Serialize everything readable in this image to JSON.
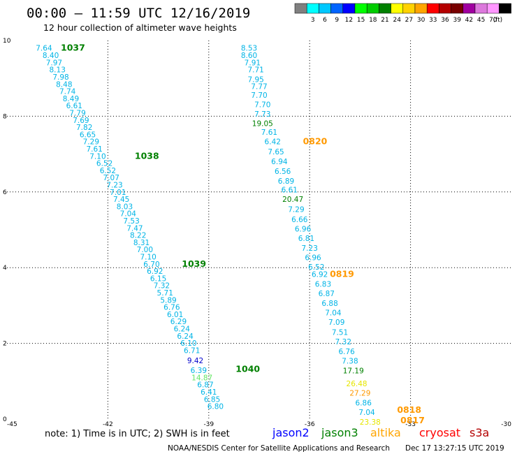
{
  "header": {
    "title": "00:00 – 11:59 UTC 12/16/2019",
    "subtitle": "12 hour collection of altimeter wave heights"
  },
  "legend": {
    "unit": "(ft)",
    "items": [
      {
        "label": "",
        "color": "#808080"
      },
      {
        "label": "3",
        "color": "#00ffff"
      },
      {
        "label": "6",
        "color": "#00c8ff"
      },
      {
        "label": "9",
        "color": "#0064ff"
      },
      {
        "label": "12",
        "color": "#0000ff"
      },
      {
        "label": "15",
        "color": "#00ff00"
      },
      {
        "label": "18",
        "color": "#00cc00"
      },
      {
        "label": "21",
        "color": "#008000"
      },
      {
        "label": "24",
        "color": "#ffff00"
      },
      {
        "label": "27",
        "color": "#ffd200"
      },
      {
        "label": "30",
        "color": "#ffa500"
      },
      {
        "label": "33",
        "color": "#ff0000"
      },
      {
        "label": "36",
        "color": "#b40000"
      },
      {
        "label": "39",
        "color": "#780000"
      },
      {
        "label": "42",
        "color": "#a000a0"
      },
      {
        "label": "45",
        "color": "#dc78dc"
      },
      {
        "label": "70",
        "color": "#ff96ff"
      },
      {
        "label": "",
        "color": "#000000"
      }
    ]
  },
  "footer": {
    "note": "note: 1) Time is in UTC; 2) SWH is in feet",
    "satellites": [
      {
        "name": "jason2",
        "color": "#0000ff"
      },
      {
        "name": "jason3",
        "color": "#008000"
      },
      {
        "name": "altika",
        "color": "#ffa500"
      },
      {
        "name": "cryosat",
        "color": "#ff0000"
      },
      {
        "name": "s3a",
        "color": "#b40000"
      }
    ],
    "credit": "NOAA/NESDIS Center for Satellite Applications and Research",
    "timestamp": "Dec 17 13:27:15 UTC 2019"
  },
  "chart_data": {
    "type": "scatter",
    "xlim": [
      -45,
      -30
    ],
    "ylim": [
      0,
      10
    ],
    "x_ticks": [
      "-45",
      "-42",
      "-39",
      "-36",
      "-33",
      "-30"
    ],
    "y_ticks": [
      "0",
      "2",
      "4",
      "6",
      "8",
      "10"
    ],
    "grid": true,
    "colors": {
      "cyan": "#00b4e6",
      "green": "#008000",
      "lightgreen": "#64e664",
      "blue": "#0000cc",
      "orange": "#ff9900",
      "yellow": "#e6e600"
    },
    "series": [
      {
        "name": "track-west",
        "points": [
          {
            "x": -43.9,
            "y": 9.81,
            "v": "7.64",
            "c": "cyan"
          },
          {
            "x": -43.7,
            "y": 9.61,
            "v": "8.40",
            "c": "cyan"
          },
          {
            "x": -43.6,
            "y": 9.42,
            "v": "7.97",
            "c": "cyan"
          },
          {
            "x": -43.5,
            "y": 9.23,
            "v": "8.13",
            "c": "cyan"
          },
          {
            "x": -43.4,
            "y": 9.04,
            "v": "7.98",
            "c": "cyan"
          },
          {
            "x": -43.3,
            "y": 8.85,
            "v": "8.48",
            "c": "cyan"
          },
          {
            "x": -43.2,
            "y": 8.66,
            "v": "7.74",
            "c": "cyan"
          },
          {
            "x": -43.1,
            "y": 8.47,
            "v": "8.49",
            "c": "cyan"
          },
          {
            "x": -43.0,
            "y": 8.28,
            "v": "6.61",
            "c": "cyan"
          },
          {
            "x": -42.9,
            "y": 8.09,
            "v": "7.79",
            "c": "cyan"
          },
          {
            "x": -42.8,
            "y": 7.9,
            "v": "7.69",
            "c": "cyan"
          },
          {
            "x": -42.7,
            "y": 7.71,
            "v": "7.82",
            "c": "cyan"
          },
          {
            "x": -42.6,
            "y": 7.52,
            "v": "6.65",
            "c": "cyan"
          },
          {
            "x": -42.5,
            "y": 7.33,
            "v": "7.29",
            "c": "cyan"
          },
          {
            "x": -42.4,
            "y": 7.14,
            "v": "7.61",
            "c": "cyan"
          },
          {
            "x": -42.3,
            "y": 6.95,
            "v": "7.10",
            "c": "cyan"
          },
          {
            "x": -42.1,
            "y": 6.76,
            "v": "6.52",
            "c": "cyan"
          },
          {
            "x": -42.0,
            "y": 6.57,
            "v": "6.52",
            "c": "cyan"
          },
          {
            "x": -41.9,
            "y": 6.38,
            "v": "7.07",
            "c": "cyan"
          },
          {
            "x": -41.8,
            "y": 6.19,
            "v": "7.23",
            "c": "cyan"
          },
          {
            "x": -41.7,
            "y": 6.0,
            "v": "7.01",
            "c": "cyan"
          },
          {
            "x": -41.6,
            "y": 5.81,
            "v": "7.45",
            "c": "cyan"
          },
          {
            "x": -41.5,
            "y": 5.62,
            "v": "8.03",
            "c": "cyan"
          },
          {
            "x": -41.4,
            "y": 5.43,
            "v": "7.04",
            "c": "cyan"
          },
          {
            "x": -41.3,
            "y": 5.24,
            "v": "7.53",
            "c": "cyan"
          },
          {
            "x": -41.2,
            "y": 5.05,
            "v": "7.47",
            "c": "cyan"
          },
          {
            "x": -41.1,
            "y": 4.86,
            "v": "8.22",
            "c": "cyan"
          },
          {
            "x": -41.0,
            "y": 4.67,
            "v": "8.31",
            "c": "cyan"
          },
          {
            "x": -40.9,
            "y": 4.48,
            "v": "7.00",
            "c": "cyan"
          },
          {
            "x": -40.8,
            "y": 4.29,
            "v": "7.10",
            "c": "cyan"
          },
          {
            "x": -40.7,
            "y": 4.1,
            "v": "6.70",
            "c": "cyan"
          },
          {
            "x": -40.6,
            "y": 3.91,
            "v": "6.92",
            "c": "cyan"
          },
          {
            "x": -40.5,
            "y": 3.72,
            "v": "6.15",
            "c": "cyan"
          },
          {
            "x": -40.4,
            "y": 3.53,
            "v": "7.32",
            "c": "cyan"
          },
          {
            "x": -40.3,
            "y": 3.34,
            "v": "5.71",
            "c": "cyan"
          },
          {
            "x": -40.2,
            "y": 3.15,
            "v": "5.89",
            "c": "cyan"
          },
          {
            "x": -40.1,
            "y": 2.96,
            "v": "6.76",
            "c": "cyan"
          },
          {
            "x": -40.0,
            "y": 2.77,
            "v": "6.01",
            "c": "cyan"
          },
          {
            "x": -39.9,
            "y": 2.58,
            "v": "6.29",
            "c": "cyan"
          },
          {
            "x": -39.8,
            "y": 2.39,
            "v": "6.24",
            "c": "cyan"
          },
          {
            "x": -39.7,
            "y": 2.2,
            "v": "6.24",
            "c": "cyan"
          },
          {
            "x": -39.6,
            "y": 2.01,
            "v": "6.10",
            "c": "cyan"
          },
          {
            "x": -39.5,
            "y": 1.82,
            "v": "6.71",
            "c": "cyan"
          },
          {
            "x": -39.4,
            "y": 1.55,
            "v": "9.42",
            "c": "blue"
          },
          {
            "x": -39.3,
            "y": 1.29,
            "v": "6.39",
            "c": "cyan"
          },
          {
            "x": -39.2,
            "y": 1.1,
            "v": "14.87",
            "c": "lightgreen"
          },
          {
            "x": -39.1,
            "y": 0.91,
            "v": "6.87",
            "c": "cyan"
          },
          {
            "x": -39.0,
            "y": 0.72,
            "v": "6.41",
            "c": "cyan"
          },
          {
            "x": -38.9,
            "y": 0.53,
            "v": "6.85",
            "c": "cyan"
          },
          {
            "x": -38.8,
            "y": 0.34,
            "v": "6.80",
            "c": "cyan"
          }
        ]
      },
      {
        "name": "track-east",
        "points": [
          {
            "x": -37.8,
            "y": 9.81,
            "v": "8.53",
            "c": "cyan"
          },
          {
            "x": -37.8,
            "y": 9.61,
            "v": "8.60",
            "c": "cyan"
          },
          {
            "x": -37.7,
            "y": 9.42,
            "v": "7.91",
            "c": "cyan"
          },
          {
            "x": -37.6,
            "y": 9.23,
            "v": "7.71",
            "c": "cyan"
          },
          {
            "x": -37.6,
            "y": 8.98,
            "v": "7.95",
            "c": "cyan"
          },
          {
            "x": -37.5,
            "y": 8.79,
            "v": "7.77",
            "c": "cyan"
          },
          {
            "x": -37.5,
            "y": 8.56,
            "v": "7.70",
            "c": "cyan"
          },
          {
            "x": -37.4,
            "y": 8.31,
            "v": "7.70",
            "c": "cyan"
          },
          {
            "x": -37.4,
            "y": 8.06,
            "v": "7.73",
            "c": "cyan"
          },
          {
            "x": -37.4,
            "y": 7.81,
            "v": "19.05",
            "c": "green"
          },
          {
            "x": -37.2,
            "y": 7.58,
            "v": "7.61",
            "c": "cyan"
          },
          {
            "x": -37.1,
            "y": 7.33,
            "v": "6.42",
            "c": "cyan"
          },
          {
            "x": -37.0,
            "y": 7.07,
            "v": "7.65",
            "c": "cyan"
          },
          {
            "x": -36.9,
            "y": 6.81,
            "v": "6.94",
            "c": "cyan"
          },
          {
            "x": -36.8,
            "y": 6.55,
            "v": "6.56",
            "c": "cyan"
          },
          {
            "x": -36.7,
            "y": 6.29,
            "v": "6.89",
            "c": "cyan"
          },
          {
            "x": -36.6,
            "y": 6.06,
            "v": "6.61",
            "c": "cyan"
          },
          {
            "x": -36.5,
            "y": 5.81,
            "v": "20.47",
            "c": "green"
          },
          {
            "x": -36.4,
            "y": 5.54,
            "v": "7.29",
            "c": "cyan"
          },
          {
            "x": -36.3,
            "y": 5.28,
            "v": "6.66",
            "c": "cyan"
          },
          {
            "x": -36.2,
            "y": 5.03,
            "v": "6.96",
            "c": "cyan"
          },
          {
            "x": -36.1,
            "y": 4.78,
            "v": "6.81",
            "c": "cyan"
          },
          {
            "x": -36.0,
            "y": 4.52,
            "v": "7.23",
            "c": "cyan"
          },
          {
            "x": -35.9,
            "y": 4.27,
            "v": "6.96",
            "c": "cyan"
          },
          {
            "x": -35.8,
            "y": 4.02,
            "v": "6.52",
            "c": "cyan"
          },
          {
            "x": -35.7,
            "y": 3.83,
            "v": "6.92",
            "c": "cyan"
          },
          {
            "x": -35.6,
            "y": 3.57,
            "v": "6.83",
            "c": "cyan"
          },
          {
            "x": -35.5,
            "y": 3.32,
            "v": "6.87",
            "c": "cyan"
          },
          {
            "x": -35.4,
            "y": 3.06,
            "v": "6.88",
            "c": "cyan"
          },
          {
            "x": -35.3,
            "y": 2.81,
            "v": "7.04",
            "c": "cyan"
          },
          {
            "x": -35.2,
            "y": 2.56,
            "v": "7.09",
            "c": "cyan"
          },
          {
            "x": -35.1,
            "y": 2.3,
            "v": "7.51",
            "c": "cyan"
          },
          {
            "x": -35.0,
            "y": 2.05,
            "v": "7.32",
            "c": "cyan"
          },
          {
            "x": -34.9,
            "y": 1.79,
            "v": "6.76",
            "c": "cyan"
          },
          {
            "x": -34.8,
            "y": 1.54,
            "v": "7.38",
            "c": "cyan"
          },
          {
            "x": -34.7,
            "y": 1.28,
            "v": "17.19",
            "c": "green"
          },
          {
            "x": -34.6,
            "y": 0.94,
            "v": "26.48",
            "c": "yellow"
          },
          {
            "x": -34.5,
            "y": 0.69,
            "v": "27.29",
            "c": "orange"
          },
          {
            "x": -34.4,
            "y": 0.43,
            "v": "6.86",
            "c": "cyan"
          },
          {
            "x": -34.3,
            "y": 0.18,
            "v": "7.04",
            "c": "cyan"
          },
          {
            "x": -34.2,
            "y": -0.07,
            "v": "23.38",
            "c": "yellow"
          }
        ]
      }
    ],
    "annotations": [
      {
        "text": "1037",
        "x": -43.4,
        "y": 9.81,
        "c": "green"
      },
      {
        "text": "1038",
        "x": -41.2,
        "y": 6.95,
        "c": "green"
      },
      {
        "text": "1039",
        "x": -39.8,
        "y": 4.1,
        "c": "green"
      },
      {
        "text": "1040",
        "x": -38.2,
        "y": 1.32,
        "c": "green"
      },
      {
        "text": "0820",
        "x": -36.2,
        "y": 7.33,
        "c": "orange"
      },
      {
        "text": "0819",
        "x": -35.4,
        "y": 3.83,
        "c": "orange"
      },
      {
        "text": "0818",
        "x": -33.4,
        "y": 0.24,
        "c": "orange"
      },
      {
        "text": "0817",
        "x": -33.3,
        "y": -0.04,
        "c": "orange"
      }
    ]
  }
}
